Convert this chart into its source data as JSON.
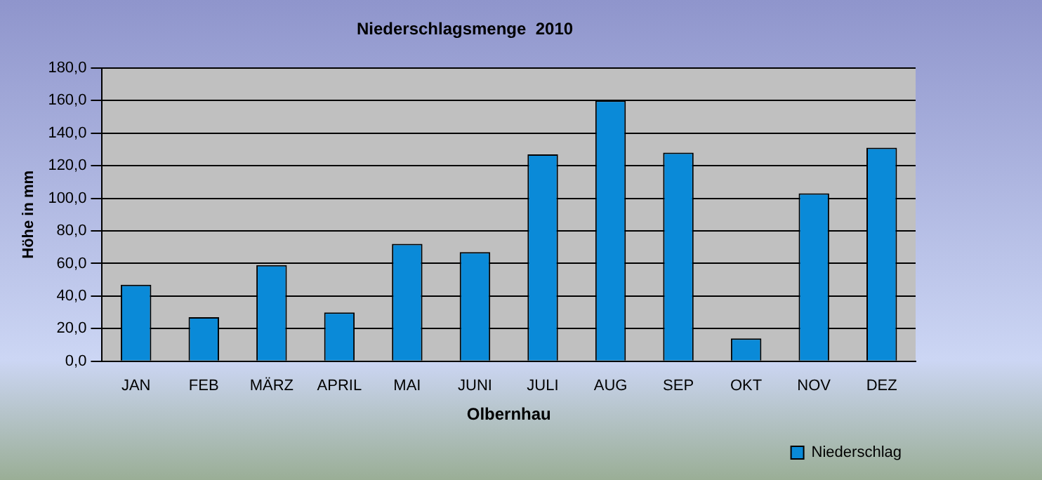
{
  "chart_data": {
    "type": "bar",
    "title": "Niederschlagsmenge  2010",
    "xlabel": "Olbernhau",
    "ylabel": "Höhe in mm",
    "categories": [
      "JAN",
      "FEB",
      "MÄRZ",
      "APRIL",
      "MAI",
      "JUNI",
      "JULI",
      "AUG",
      "SEP",
      "OKT",
      "NOV",
      "DEZ"
    ],
    "series": [
      {
        "name": "Niederschlag",
        "color": "#0a8ad8",
        "values": [
          47,
          27,
          59,
          30,
          72,
          67,
          127,
          160,
          128,
          14,
          103,
          131
        ]
      }
    ],
    "ylim": [
      0,
      180
    ],
    "yticks": [
      {
        "value": 0,
        "label": "0,0"
      },
      {
        "value": 20,
        "label": "20,0"
      },
      {
        "value": 40,
        "label": "40,0"
      },
      {
        "value": 60,
        "label": "60,0"
      },
      {
        "value": 80,
        "label": "80,0"
      },
      {
        "value": 100,
        "label": "100,0"
      },
      {
        "value": 120,
        "label": "120,0"
      },
      {
        "value": 140,
        "label": "140,0"
      },
      {
        "value": 160,
        "label": "160,0"
      },
      {
        "value": 180,
        "label": "180,0"
      }
    ],
    "grid": "y",
    "legend": "bottom right"
  }
}
